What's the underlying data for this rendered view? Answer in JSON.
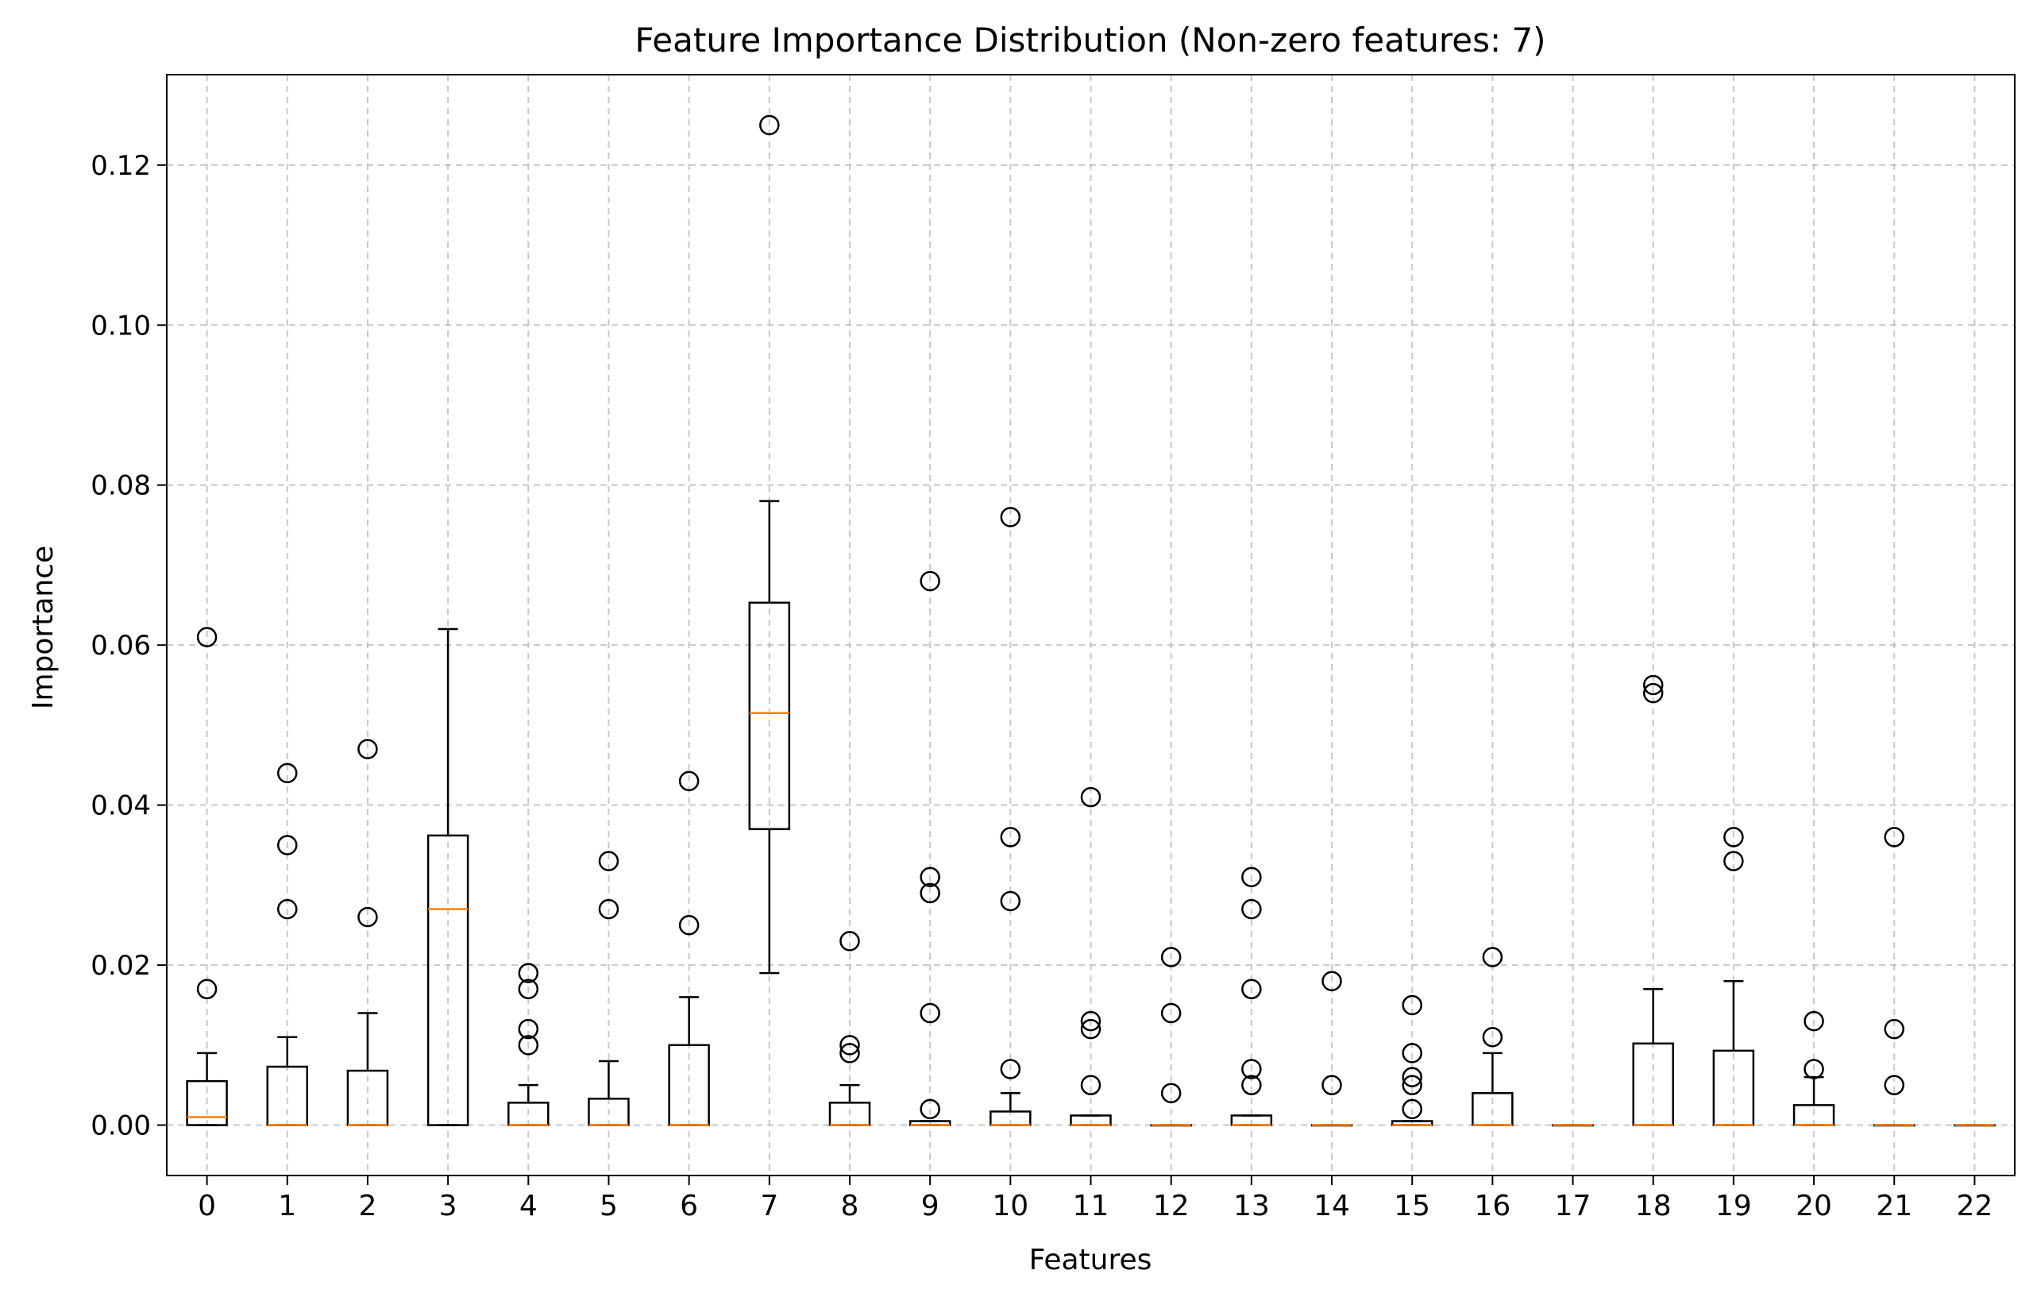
{
  "chart_data": {
    "type": "boxplot",
    "title": "Feature Importance Distribution (Non-zero features: 7)",
    "xlabel": "Features",
    "ylabel": "Importance",
    "ylim": [
      -0.0063,
      0.1313
    ],
    "yticks": [
      "0.00",
      "0.02",
      "0.04",
      "0.06",
      "0.08",
      "0.10",
      "0.12"
    ],
    "categories": [
      "0",
      "1",
      "2",
      "3",
      "4",
      "5",
      "6",
      "7",
      "8",
      "9",
      "10",
      "11",
      "12",
      "13",
      "14",
      "15",
      "16",
      "17",
      "18",
      "19",
      "20",
      "21",
      "22"
    ],
    "grid": true,
    "colors": {
      "box": "#000000",
      "median": "#ff7f0e",
      "grid": "#b0b0b0",
      "flier": "#000000"
    },
    "boxes": [
      {
        "q1": 0.0,
        "median": 0.001,
        "q3": 0.0055,
        "whislo": 0.0,
        "whishi": 0.009,
        "fliers": [
          0.017,
          0.061
        ]
      },
      {
        "q1": 0.0,
        "median": 0.0,
        "q3": 0.0073,
        "whislo": 0.0,
        "whishi": 0.011,
        "fliers": [
          0.027,
          0.035,
          0.044
        ]
      },
      {
        "q1": 0.0,
        "median": 0.0,
        "q3": 0.0068,
        "whislo": 0.0,
        "whishi": 0.014,
        "fliers": [
          0.026,
          0.047
        ]
      },
      {
        "q1": 0.0,
        "median": 0.027,
        "q3": 0.0362,
        "whislo": 0.0,
        "whishi": 0.062,
        "fliers": []
      },
      {
        "q1": 0.0,
        "median": 0.0,
        "q3": 0.0028,
        "whislo": 0.0,
        "whishi": 0.005,
        "fliers": [
          0.01,
          0.012,
          0.017,
          0.019
        ]
      },
      {
        "q1": 0.0,
        "median": 0.0,
        "q3": 0.0033,
        "whislo": 0.0,
        "whishi": 0.008,
        "fliers": [
          0.027,
          0.033
        ]
      },
      {
        "q1": 0.0,
        "median": 0.0,
        "q3": 0.01,
        "whislo": 0.0,
        "whishi": 0.016,
        "fliers": [
          0.025,
          0.043
        ]
      },
      {
        "q1": 0.037,
        "median": 0.0515,
        "q3": 0.0653,
        "whislo": 0.019,
        "whishi": 0.078,
        "fliers": [
          0.125
        ]
      },
      {
        "q1": 0.0,
        "median": 0.0,
        "q3": 0.0028,
        "whislo": 0.0,
        "whishi": 0.005,
        "fliers": [
          0.009,
          0.01,
          0.023
        ]
      },
      {
        "q1": 0.0,
        "median": 0.0,
        "q3": 0.0005,
        "whislo": 0.0,
        "whishi": 0.0005,
        "fliers": [
          0.002,
          0.014,
          0.029,
          0.031,
          0.068
        ]
      },
      {
        "q1": 0.0,
        "median": 0.0,
        "q3": 0.0017,
        "whislo": 0.0,
        "whishi": 0.004,
        "fliers": [
          0.007,
          0.028,
          0.036,
          0.076
        ]
      },
      {
        "q1": 0.0,
        "median": 0.0,
        "q3": 0.0012,
        "whislo": 0.0,
        "whishi": 0.0012,
        "fliers": [
          0.005,
          0.012,
          0.013,
          0.041
        ]
      },
      {
        "q1": 0.0,
        "median": 0.0,
        "q3": 0.0,
        "whislo": 0.0,
        "whishi": 0.0,
        "fliers": [
          0.004,
          0.014,
          0.021
        ]
      },
      {
        "q1": 0.0,
        "median": 0.0,
        "q3": 0.0012,
        "whislo": 0.0,
        "whishi": 0.0012,
        "fliers": [
          0.005,
          0.007,
          0.017,
          0.027,
          0.031
        ]
      },
      {
        "q1": 0.0,
        "median": 0.0,
        "q3": 0.0,
        "whislo": 0.0,
        "whishi": 0.0,
        "fliers": [
          0.005,
          0.018
        ]
      },
      {
        "q1": 0.0,
        "median": 0.0,
        "q3": 0.0005,
        "whislo": 0.0,
        "whishi": 0.0005,
        "fliers": [
          0.002,
          0.005,
          0.006,
          0.009,
          0.015
        ]
      },
      {
        "q1": 0.0,
        "median": 0.0,
        "q3": 0.004,
        "whislo": 0.0,
        "whishi": 0.009,
        "fliers": [
          0.011,
          0.021
        ]
      },
      {
        "q1": 0.0,
        "median": 0.0,
        "q3": 0.0,
        "whislo": 0.0,
        "whishi": 0.0,
        "fliers": []
      },
      {
        "q1": 0.0,
        "median": 0.0,
        "q3": 0.0102,
        "whislo": 0.0,
        "whishi": 0.017,
        "fliers": [
          0.054,
          0.055
        ]
      },
      {
        "q1": 0.0,
        "median": 0.0,
        "q3": 0.0093,
        "whislo": 0.0,
        "whishi": 0.018,
        "fliers": [
          0.033,
          0.036
        ]
      },
      {
        "q1": 0.0,
        "median": 0.0,
        "q3": 0.0025,
        "whislo": 0.0,
        "whishi": 0.006,
        "fliers": [
          0.007,
          0.013
        ]
      },
      {
        "q1": 0.0,
        "median": 0.0,
        "q3": 0.0,
        "whislo": 0.0,
        "whishi": 0.0,
        "fliers": [
          0.005,
          0.012,
          0.036
        ]
      },
      {
        "q1": 0.0,
        "median": 0.0,
        "q3": 0.0,
        "whislo": 0.0,
        "whishi": 0.0,
        "fliers": []
      }
    ]
  }
}
